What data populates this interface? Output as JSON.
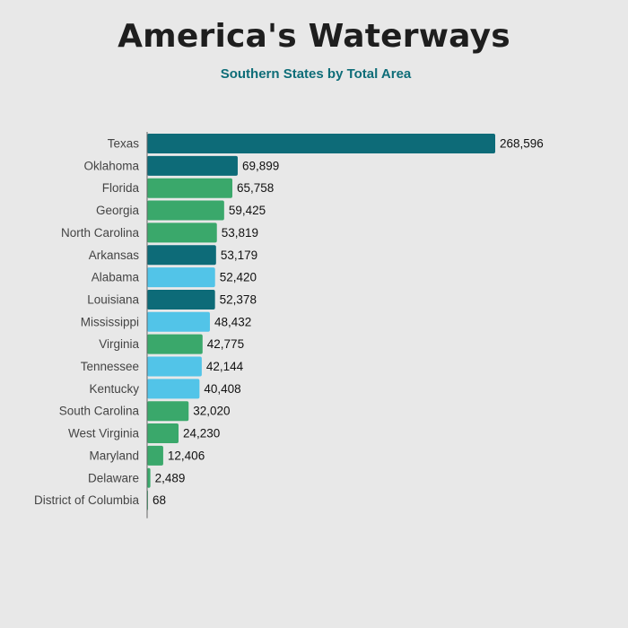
{
  "chart_data": {
    "type": "bar",
    "orientation": "horizontal",
    "title": "America's Waterways",
    "subtitle": "Southern States by Total Area",
    "xlabel": "",
    "ylabel": "",
    "xlim": [
      0,
      268596
    ],
    "grid": false,
    "categories": [
      "Texas",
      "Oklahoma",
      "Florida",
      "Georgia",
      "North Carolina",
      "Arkansas",
      "Alabama",
      "Louisiana",
      "Mississippi",
      "Virginia",
      "Tennessee",
      "Kentucky",
      "South Carolina",
      "West Virginia",
      "Maryland",
      "Delaware",
      "District of Columbia"
    ],
    "values": [
      268596,
      69899,
      65758,
      59425,
      53819,
      53179,
      52420,
      52378,
      48432,
      42775,
      42144,
      40408,
      32020,
      24230,
      12406,
      2489,
      68
    ],
    "value_labels": [
      "268,596",
      "69,899",
      "65,758",
      "59,425",
      "53,819",
      "53,179",
      "52,420",
      "52,378",
      "48,432",
      "42,775",
      "42,144",
      "40,408",
      "32,020",
      "24,230",
      "12,406",
      "2,489",
      "68"
    ],
    "bar_colors": [
      "#0d6b78",
      "#0d6b78",
      "#3aa86b",
      "#3aa86b",
      "#3aa86b",
      "#0d6b78",
      "#52c4e8",
      "#0d6b78",
      "#52c4e8",
      "#3aa86b",
      "#52c4e8",
      "#52c4e8",
      "#3aa86b",
      "#3aa86b",
      "#3aa86b",
      "#3aa86b",
      "#3aa86b"
    ]
  }
}
